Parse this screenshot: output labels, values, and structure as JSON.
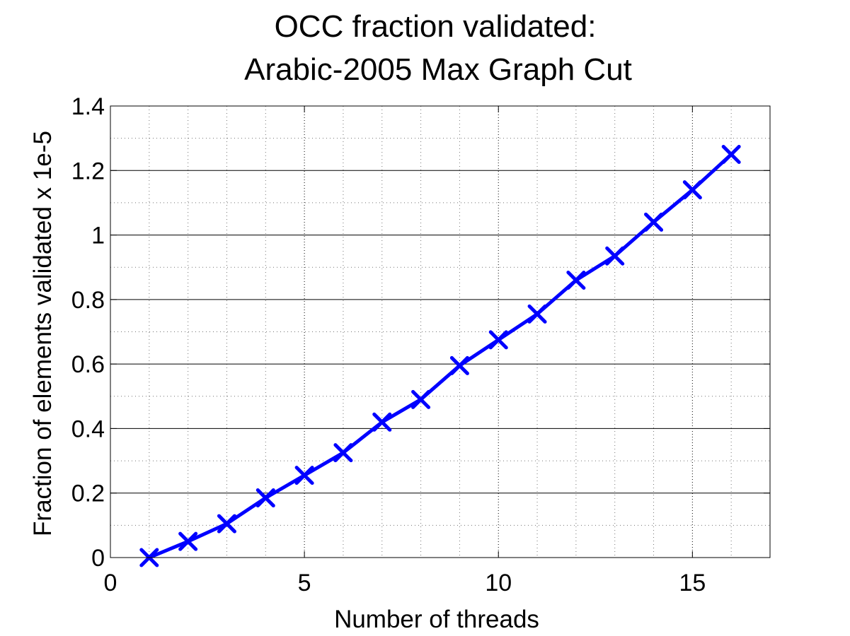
{
  "chart_data": {
    "type": "line",
    "title": [
      "OCC fraction validated:",
      "Arabic-2005 Max Graph Cut"
    ],
    "xlabel": "Number of threads",
    "ylabel": "Fraction of elements validated x 1e-5",
    "xlim": [
      0,
      17
    ],
    "ylim": [
      0,
      1.4
    ],
    "xticks": [
      0,
      5,
      10,
      15
    ],
    "xtick_labels": [
      "0",
      "5",
      "10",
      "15"
    ],
    "yticks": [
      0,
      0.2,
      0.4,
      0.6,
      0.8,
      1.0,
      1.2,
      1.4
    ],
    "ytick_labels": [
      "0",
      "0.2",
      "0.4",
      "0.6",
      "0.8",
      "1",
      "1.2",
      "1.4"
    ],
    "grid": {
      "major": true,
      "minor": true
    },
    "series": [
      {
        "marker": "x",
        "color": "#0000ff",
        "x": [
          1,
          2,
          3,
          4,
          5,
          6,
          7,
          8,
          9,
          10,
          11,
          12,
          13,
          14,
          15,
          16
        ],
        "y": [
          0.0,
          0.05,
          0.105,
          0.185,
          0.255,
          0.325,
          0.42,
          0.49,
          0.595,
          0.675,
          0.755,
          0.86,
          0.935,
          1.04,
          1.14,
          1.25
        ]
      }
    ]
  }
}
